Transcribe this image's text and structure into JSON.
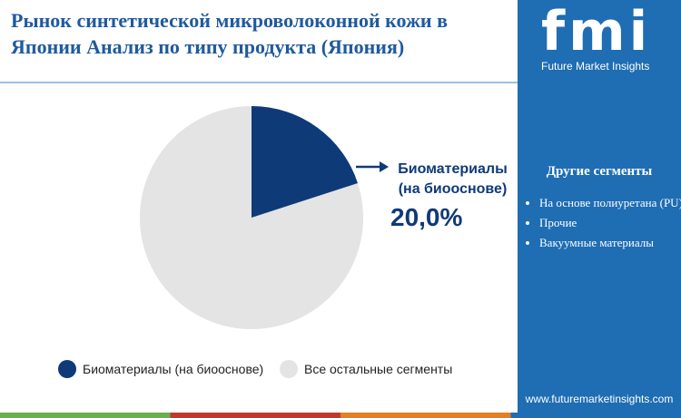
{
  "header": {
    "title": "Рынок синтетической микроволоконной кожи в Японии Анализ по типу продукта (Япония)",
    "logo_mark": "fmi",
    "logo_name": "Future Market Insights"
  },
  "chart_data": {
    "type": "pie",
    "categories": [
      "Биоматериалы (на биооснове)",
      "Все остальные сегменты"
    ],
    "values": [
      20,
      80
    ],
    "value_labels": [
      "20,0%",
      null
    ],
    "colors": [
      "#0e3a78",
      "#e4e4e4"
    ]
  },
  "sidebar": {
    "heading": "Другие сегменты",
    "items": [
      "На основе полиуретана (PU)",
      "Прочие",
      "Вакуумные материалы"
    ],
    "url": "www.futuremarketinsights.com"
  }
}
